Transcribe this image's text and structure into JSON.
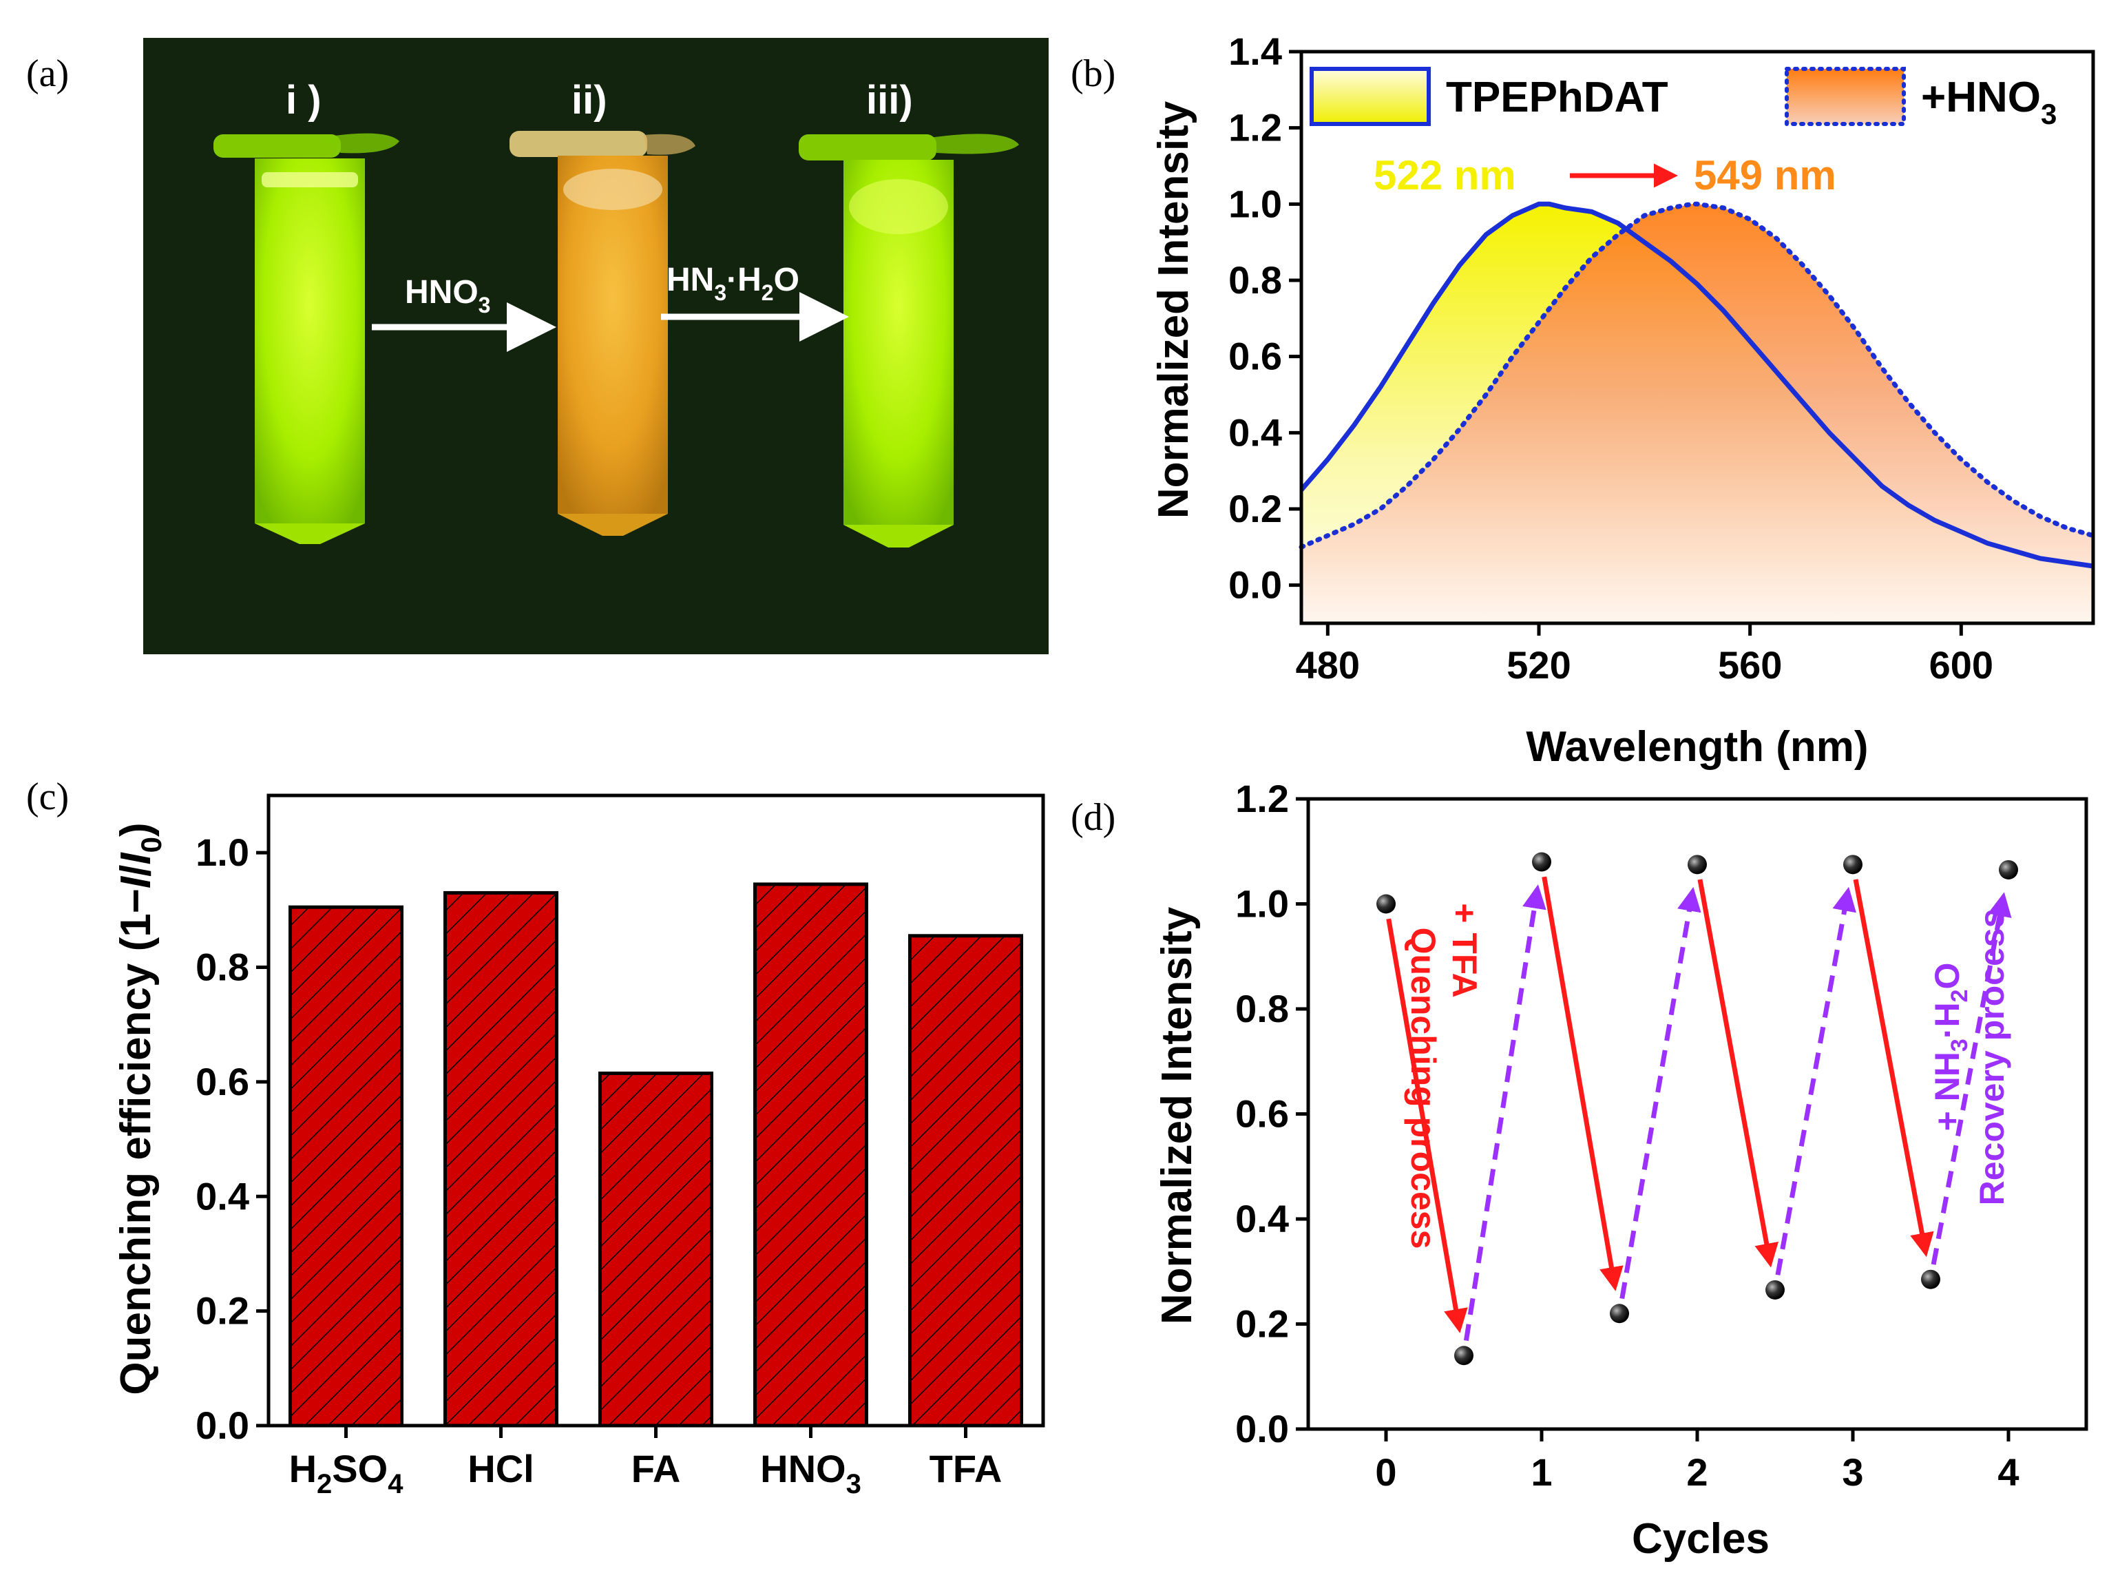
{
  "panel_labels": [
    "(a)",
    "(b)",
    "(c)",
    "(d)"
  ],
  "photo": {
    "tube_labels": [
      "i )",
      "ii)",
      "iii)"
    ],
    "arrow1_main": "HNO",
    "arrow1_sub": "3",
    "arrow2_a": "HN",
    "arrow2_sub1": "3",
    "arrow2_b": "·H",
    "arrow2_sub2": "2",
    "arrow2_c": "O",
    "colors": {
      "background": "#0d1a0c",
      "green": "#b8f500",
      "orange": "#f0a020"
    }
  },
  "chart_data": [
    {
      "type": "area",
      "panel": "(b)",
      "xlabel": "Wavelength (nm)",
      "ylabel": "Normalized Intensity",
      "xlim": [
        475,
        625
      ],
      "ylim": [
        -0.1,
        1.4
      ],
      "xticks": [
        "480",
        "520",
        "560",
        "600"
      ],
      "yticks": [
        "0.0",
        "0.2",
        "0.4",
        "0.6",
        "0.8",
        "1.0",
        "1.2",
        "1.4"
      ],
      "series": [
        {
          "name": "TPEPhDAT",
          "peak": 522,
          "color": "#1a2fd6",
          "x": [
            475,
            480,
            485,
            490,
            495,
            500,
            505,
            510,
            515,
            520,
            522,
            525,
            530,
            535,
            540,
            545,
            550,
            555,
            560,
            565,
            570,
            575,
            580,
            585,
            590,
            595,
            600,
            605,
            610,
            615,
            620,
            625
          ],
          "y": [
            0.25,
            0.33,
            0.42,
            0.52,
            0.63,
            0.74,
            0.84,
            0.92,
            0.97,
            1.0,
            1.0,
            0.99,
            0.98,
            0.95,
            0.9,
            0.85,
            0.79,
            0.72,
            0.64,
            0.56,
            0.48,
            0.4,
            0.33,
            0.26,
            0.21,
            0.17,
            0.14,
            0.11,
            0.09,
            0.07,
            0.06,
            0.05
          ]
        },
        {
          "name": "+HNO",
          "name_sub": "3",
          "peak": 549,
          "color": "#1a2fd6",
          "x": [
            475,
            480,
            485,
            490,
            495,
            500,
            505,
            510,
            515,
            520,
            525,
            530,
            535,
            540,
            545,
            549,
            550,
            555,
            560,
            565,
            570,
            575,
            580,
            585,
            590,
            595,
            600,
            605,
            610,
            615,
            620,
            625
          ],
          "y": [
            0.1,
            0.13,
            0.16,
            0.2,
            0.26,
            0.33,
            0.41,
            0.5,
            0.6,
            0.69,
            0.78,
            0.86,
            0.92,
            0.97,
            0.99,
            1.0,
            1.0,
            0.99,
            0.96,
            0.91,
            0.84,
            0.76,
            0.67,
            0.57,
            0.48,
            0.4,
            0.33,
            0.27,
            0.22,
            0.18,
            0.15,
            0.13
          ]
        }
      ],
      "annotations": {
        "peak1": "522 nm",
        "peak2": "549 nm",
        "color1": "#f5f000",
        "color2": "#ff8c1a"
      }
    },
    {
      "type": "bar",
      "panel": "(c)",
      "ylabel_main": "Quenching efficiency (1−",
      "ylabel_I": "I",
      "ylabel_slash": "/",
      "ylabel_I0": "I",
      "ylabel_sub": "0",
      "ylabel_close": ")",
      "ylim": [
        0,
        1.1
      ],
      "yticks": [
        "0.0",
        "0.2",
        "0.4",
        "0.6",
        "0.8",
        "1.0"
      ],
      "categories": [
        {
          "main": "H",
          "sub1": "2",
          "mid": "SO",
          "sub2": "4"
        },
        {
          "main": "HCl"
        },
        {
          "main": "FA"
        },
        {
          "main": "HNO",
          "sub1": "3"
        },
        {
          "main": "TFA"
        }
      ],
      "values": [
        0.905,
        0.93,
        0.615,
        0.945,
        0.855
      ],
      "bar_color": "#d10000"
    },
    {
      "type": "scatter",
      "panel": "(d)",
      "xlabel": "Cycles",
      "ylabel": "Normalized Intensity",
      "xlim": [
        -0.5,
        4.5
      ],
      "ylim": [
        0,
        1.2
      ],
      "xticks": [
        "0",
        "1",
        "2",
        "3",
        "4"
      ],
      "yticks": [
        "0.0",
        "0.2",
        "0.4",
        "0.6",
        "0.8",
        "1.0",
        "1.2"
      ],
      "x": [
        0,
        0.5,
        1,
        1.5,
        2,
        2.5,
        3,
        3.5,
        4
      ],
      "y": [
        1.0,
        0.14,
        1.08,
        0.22,
        1.075,
        0.265,
        1.075,
        0.285,
        1.065
      ],
      "quench_color": "#ff1a1a",
      "recover_color": "#9b30ff",
      "left_text_a": "+ TFA",
      "left_text_b": "Quenching process",
      "right_text_a_pre": "+ NH",
      "right_text_a_sub1": "3",
      "right_text_a_mid": "·H",
      "right_text_a_sub2": "2",
      "right_text_a_post": "O",
      "right_text_b": "Recovery process"
    }
  ]
}
